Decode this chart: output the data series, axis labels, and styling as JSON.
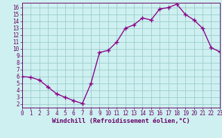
{
  "x": [
    0,
    1,
    2,
    3,
    4,
    5,
    6,
    7,
    8,
    9,
    10,
    11,
    12,
    13,
    14,
    15,
    16,
    17,
    18,
    19,
    20,
    21,
    22,
    23
  ],
  "y": [
    6.0,
    5.9,
    5.5,
    4.5,
    3.5,
    3.0,
    2.5,
    2.1,
    5.0,
    9.5,
    9.8,
    11.0,
    13.0,
    13.5,
    14.5,
    14.2,
    15.8,
    16.0,
    16.5,
    15.0,
    14.2,
    13.0,
    10.2,
    9.6
  ],
  "line_color": "#880088",
  "marker": "+",
  "marker_size": 4,
  "marker_color": "#880088",
  "bg_color": "#cff0f0",
  "grid_color": "#99cccc",
  "xlabel": "Windchill (Refroidissement éolien,°C)",
  "xlabel_color": "#660066",
  "tick_color": "#660066",
  "spine_color": "#660066",
  "xlim": [
    0,
    23
  ],
  "ylim": [
    1.5,
    16.7
  ],
  "yticks": [
    2,
    3,
    4,
    5,
    6,
    7,
    8,
    9,
    10,
    11,
    12,
    13,
    14,
    15,
    16
  ],
  "xticks": [
    0,
    1,
    2,
    3,
    4,
    5,
    6,
    7,
    8,
    9,
    10,
    11,
    12,
    13,
    14,
    15,
    16,
    17,
    18,
    19,
    20,
    21,
    22,
    23
  ],
  "line_width": 1.0,
  "tick_fontsize": 5.5,
  "xlabel_fontsize": 6.5
}
